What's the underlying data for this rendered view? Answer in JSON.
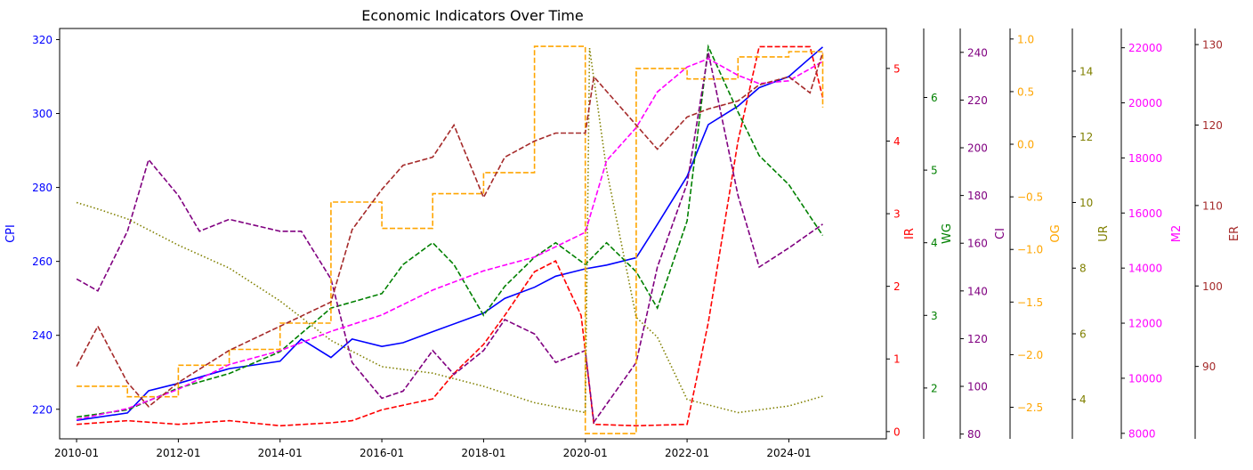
{
  "chart_data": {
    "type": "line",
    "title": "Economic Indicators Over Time",
    "x_tick_labels": [
      "2010-01",
      "2012-01",
      "2014-01",
      "2016-01",
      "2018-01",
      "2020-01",
      "2022-01",
      "2024-01"
    ],
    "x_range": [
      "2009-09",
      "2025-12"
    ],
    "grid": false,
    "legend": "none",
    "axes": [
      {
        "key": "CPI",
        "label": "CPI",
        "color": "#0000ff",
        "side": "left",
        "range": [
          212,
          323
        ],
        "ticks": [
          220,
          240,
          260,
          280,
          300,
          320
        ]
      },
      {
        "key": "IR",
        "label": "IR",
        "color": "#ff0000",
        "side": "right",
        "range": [
          -0.1,
          5.55
        ],
        "ticks": [
          0,
          1,
          2,
          3,
          4,
          5
        ]
      },
      {
        "key": "WG",
        "label": "WG",
        "color": "#008000",
        "side": "right",
        "range": [
          1.3,
          6.95
        ],
        "ticks": [
          2,
          3,
          4,
          5,
          6
        ]
      },
      {
        "key": "CI",
        "label": "CI",
        "color": "#800080",
        "side": "right",
        "range": [
          78,
          250
        ],
        "ticks": [
          80,
          100,
          120,
          140,
          160,
          180,
          200,
          220,
          240
        ]
      },
      {
        "key": "OG",
        "label": "OG",
        "color": "#ffa500",
        "side": "right",
        "range": [
          -2.8,
          1.1
        ],
        "ticks": [
          -2.5,
          -2.0,
          -1.5,
          -1.0,
          -0.5,
          0.0,
          0.5,
          1.0
        ],
        "tick_labels": [
          "−2.5",
          "−2.0",
          "−1.5",
          "−1.0",
          "−0.5",
          "0.0",
          "0.5",
          "1.0"
        ]
      },
      {
        "key": "UR",
        "label": "UR",
        "color": "#808000",
        "side": "right",
        "range": [
          2.8,
          15.3
        ],
        "ticks": [
          4,
          6,
          8,
          10,
          12,
          14
        ]
      },
      {
        "key": "M2",
        "label": "M2",
        "color": "#ff00ff",
        "side": "right",
        "range": [
          7800,
          22700
        ],
        "ticks": [
          8000,
          10000,
          12000,
          14000,
          16000,
          18000,
          20000,
          22000
        ]
      },
      {
        "key": "ER",
        "label": "ER",
        "color": "#a52a2a",
        "side": "right",
        "range": [
          81,
          132
        ],
        "ticks": [
          90,
          100,
          110,
          120,
          130
        ]
      }
    ],
    "series": [
      {
        "axis": "CPI",
        "style": "solid",
        "points": [
          [
            "2010-01",
            217
          ],
          [
            "2011-01",
            219
          ],
          [
            "2011-06",
            225
          ],
          [
            "2012-01",
            227
          ],
          [
            "2013-01",
            231
          ],
          [
            "2014-01",
            233
          ],
          [
            "2014-06",
            239
          ],
          [
            "2015-01",
            234
          ],
          [
            "2015-06",
            239
          ],
          [
            "2016-01",
            237
          ],
          [
            "2016-06",
            238
          ],
          [
            "2017-01",
            241
          ],
          [
            "2018-01",
            246
          ],
          [
            "2018-06",
            250
          ],
          [
            "2019-01",
            253
          ],
          [
            "2019-06",
            256
          ],
          [
            "2020-01",
            258
          ],
          [
            "2020-06",
            259
          ],
          [
            "2021-01",
            261
          ],
          [
            "2021-06",
            270
          ],
          [
            "2022-01",
            283
          ],
          [
            "2022-06",
            297
          ],
          [
            "2023-01",
            302
          ],
          [
            "2023-06",
            307
          ],
          [
            "2024-01",
            310
          ],
          [
            "2024-06",
            315
          ],
          [
            "2024-09",
            318
          ]
        ]
      },
      {
        "axis": "IR",
        "style": "dashed",
        "points": [
          [
            "2010-01",
            0.1
          ],
          [
            "2011-01",
            0.15
          ],
          [
            "2012-01",
            0.1
          ],
          [
            "2013-01",
            0.15
          ],
          [
            "2014-01",
            0.08
          ],
          [
            "2015-01",
            0.12
          ],
          [
            "2015-06",
            0.15
          ],
          [
            "2016-01",
            0.3
          ],
          [
            "2017-01",
            0.45
          ],
          [
            "2017-06",
            0.8
          ],
          [
            "2018-01",
            1.2
          ],
          [
            "2018-06",
            1.6
          ],
          [
            "2019-01",
            2.2
          ],
          [
            "2019-06",
            2.35
          ],
          [
            "2019-12",
            1.6
          ],
          [
            "2020-03",
            0.1
          ],
          [
            "2021-01",
            0.08
          ],
          [
            "2022-01",
            0.1
          ],
          [
            "2022-06",
            1.5
          ],
          [
            "2023-01",
            4.0
          ],
          [
            "2023-06",
            5.3
          ],
          [
            "2024-06",
            5.3
          ],
          [
            "2024-09",
            4.6
          ]
        ]
      },
      {
        "axis": "WG",
        "style": "dashed",
        "points": [
          [
            "2010-01",
            1.6
          ],
          [
            "2011-01",
            1.7
          ],
          [
            "2012-01",
            2.0
          ],
          [
            "2013-01",
            2.2
          ],
          [
            "2014-01",
            2.5
          ],
          [
            "2015-01",
            3.1
          ],
          [
            "2016-01",
            3.3
          ],
          [
            "2016-06",
            3.7
          ],
          [
            "2017-01",
            4.0
          ],
          [
            "2017-06",
            3.7
          ],
          [
            "2018-01",
            3.0
          ],
          [
            "2018-06",
            3.4
          ],
          [
            "2019-01",
            3.8
          ],
          [
            "2019-06",
            4.0
          ],
          [
            "2020-01",
            3.7
          ],
          [
            "2020-06",
            4.0
          ],
          [
            "2021-01",
            3.6
          ],
          [
            "2021-06",
            3.1
          ],
          [
            "2022-01",
            4.3
          ],
          [
            "2022-06",
            6.7
          ],
          [
            "2023-01",
            5.8
          ],
          [
            "2023-06",
            5.2
          ],
          [
            "2024-01",
            4.8
          ],
          [
            "2024-09",
            4.1
          ]
        ]
      },
      {
        "axis": "CI",
        "style": "dashed",
        "points": [
          [
            "2010-01",
            145
          ],
          [
            "2010-06",
            140
          ],
          [
            "2011-01",
            165
          ],
          [
            "2011-06",
            195
          ],
          [
            "2012-01",
            180
          ],
          [
            "2012-06",
            165
          ],
          [
            "2013-01",
            170
          ],
          [
            "2014-01",
            165
          ],
          [
            "2014-06",
            165
          ],
          [
            "2015-01",
            145
          ],
          [
            "2015-06",
            110
          ],
          [
            "2016-01",
            95
          ],
          [
            "2016-06",
            98
          ],
          [
            "2017-01",
            115
          ],
          [
            "2017-06",
            105
          ],
          [
            "2018-01",
            115
          ],
          [
            "2018-06",
            128
          ],
          [
            "2019-01",
            122
          ],
          [
            "2019-06",
            110
          ],
          [
            "2020-01",
            115
          ],
          [
            "2020-03",
            85
          ],
          [
            "2021-01",
            110
          ],
          [
            "2021-06",
            150
          ],
          [
            "2022-01",
            185
          ],
          [
            "2022-06",
            240
          ],
          [
            "2023-01",
            180
          ],
          [
            "2023-06",
            150
          ],
          [
            "2024-01",
            158
          ],
          [
            "2024-09",
            168
          ]
        ]
      },
      {
        "axis": "OG",
        "style": "dashed",
        "step": true,
        "points": [
          [
            "2010-01",
            -2.3
          ],
          [
            "2011-01",
            -2.4
          ],
          [
            "2012-01",
            -2.1
          ],
          [
            "2013-01",
            -1.95
          ],
          [
            "2014-01",
            -1.7
          ],
          [
            "2015-01",
            -0.55
          ],
          [
            "2016-01",
            -0.8
          ],
          [
            "2017-01",
            -0.47
          ],
          [
            "2018-01",
            -0.27
          ],
          [
            "2019-01",
            0.93
          ],
          [
            "2020-01",
            -2.75
          ],
          [
            "2021-01",
            0.72
          ],
          [
            "2022-01",
            0.62
          ],
          [
            "2023-01",
            0.83
          ],
          [
            "2024-01",
            0.88
          ],
          [
            "2024-09",
            0.35
          ]
        ]
      },
      {
        "axis": "UR",
        "style": "dotted",
        "points": [
          [
            "2010-01",
            10.0
          ],
          [
            "2010-06",
            9.8
          ],
          [
            "2011-01",
            9.5
          ],
          [
            "2012-01",
            8.7
          ],
          [
            "2013-01",
            8.0
          ],
          [
            "2014-01",
            7.0
          ],
          [
            "2015-01",
            5.8
          ],
          [
            "2016-01",
            5.0
          ],
          [
            "2017-01",
            4.8
          ],
          [
            "2018-01",
            4.4
          ],
          [
            "2019-01",
            3.9
          ],
          [
            "2020-01",
            3.6
          ],
          [
            "2020-02",
            14.7
          ],
          [
            "2020-06",
            11.0
          ],
          [
            "2021-01",
            6.5
          ],
          [
            "2021-06",
            5.9
          ],
          [
            "2022-01",
            4.0
          ],
          [
            "2023-01",
            3.6
          ],
          [
            "2024-01",
            3.8
          ],
          [
            "2024-09",
            4.1
          ]
        ]
      },
      {
        "axis": "M2",
        "style": "dashed",
        "points": [
          [
            "2010-01",
            8500
          ],
          [
            "2011-01",
            8900
          ],
          [
            "2012-01",
            9600
          ],
          [
            "2013-01",
            10500
          ],
          [
            "2014-01",
            11000
          ],
          [
            "2015-01",
            11700
          ],
          [
            "2016-01",
            12300
          ],
          [
            "2017-01",
            13200
          ],
          [
            "2018-01",
            13900
          ],
          [
            "2019-01",
            14400
          ],
          [
            "2020-01",
            15300
          ],
          [
            "2020-06",
            17900
          ],
          [
            "2021-01",
            19100
          ],
          [
            "2021-06",
            20400
          ],
          [
            "2022-01",
            21300
          ],
          [
            "2022-06",
            21600
          ],
          [
            "2023-01",
            21000
          ],
          [
            "2023-06",
            20700
          ],
          [
            "2024-01",
            20800
          ],
          [
            "2024-09",
            21500
          ]
        ]
      },
      {
        "axis": "ER",
        "style": "dashed",
        "points": [
          [
            "2010-01",
            90
          ],
          [
            "2010-06",
            95
          ],
          [
            "2011-01",
            88
          ],
          [
            "2011-06",
            85
          ],
          [
            "2012-01",
            88
          ],
          [
            "2013-01",
            92
          ],
          [
            "2014-01",
            95
          ],
          [
            "2015-01",
            98
          ],
          [
            "2015-06",
            107
          ],
          [
            "2016-01",
            112
          ],
          [
            "2016-06",
            115
          ],
          [
            "2017-01",
            116
          ],
          [
            "2017-06",
            120
          ],
          [
            "2018-01",
            111
          ],
          [
            "2018-06",
            116
          ],
          [
            "2019-01",
            118
          ],
          [
            "2019-06",
            119
          ],
          [
            "2020-01",
            119
          ],
          [
            "2020-03",
            126
          ],
          [
            "2021-01",
            120
          ],
          [
            "2021-06",
            117
          ],
          [
            "2022-01",
            121
          ],
          [
            "2022-06",
            122
          ],
          [
            "2023-01",
            123
          ],
          [
            "2023-06",
            125
          ],
          [
            "2024-01",
            126
          ],
          [
            "2024-06",
            124
          ],
          [
            "2024-09",
            129
          ]
        ]
      }
    ]
  }
}
